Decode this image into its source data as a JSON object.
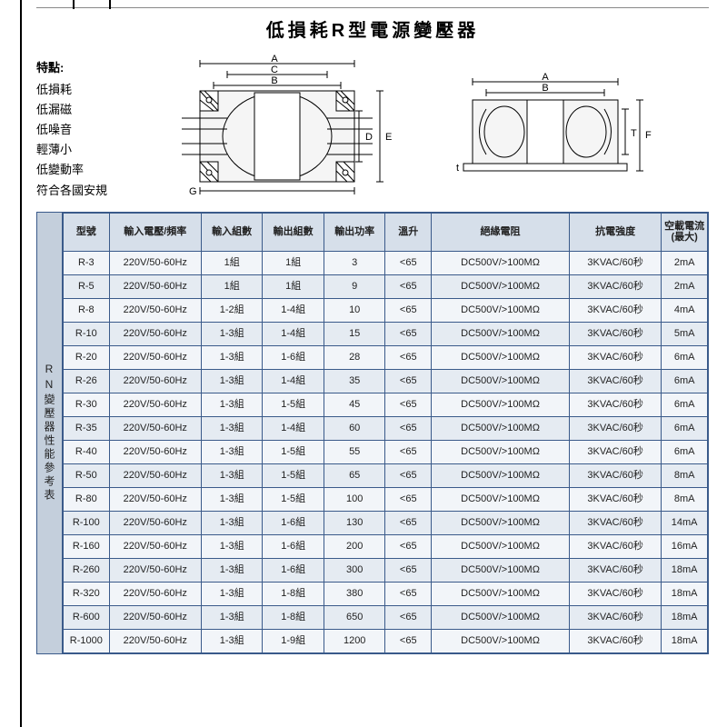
{
  "title": "低損耗R型電源變壓器",
  "features_title": "特點:",
  "features": [
    "低損耗",
    "低漏磁",
    "低噪音",
    "輕薄小",
    "低變動率",
    "符合各國安規"
  ],
  "diagram_labels": {
    "A": "A",
    "B": "B",
    "C": "C",
    "D": "D",
    "E": "E",
    "G": "G",
    "t": "t",
    "T": "T",
    "F": "F"
  },
  "side_label": "RN變壓器性能參考表",
  "table": {
    "columns": [
      "型號",
      "輸入電壓/頻率",
      "輸入組數",
      "輸出組數",
      "輸出功率",
      "溫升",
      "絕緣電阻",
      "抗電強度",
      "空載電流(最大)"
    ],
    "rows": [
      [
        "R-3",
        "220V/50-60Hz",
        "1組",
        "1組",
        "3",
        "<65",
        "DC500V/>100MΩ",
        "3KVAC/60秒",
        "2mA"
      ],
      [
        "R-5",
        "220V/50-60Hz",
        "1組",
        "1組",
        "9",
        "<65",
        "DC500V/>100MΩ",
        "3KVAC/60秒",
        "2mA"
      ],
      [
        "R-8",
        "220V/50-60Hz",
        "1-2組",
        "1-4組",
        "10",
        "<65",
        "DC500V/>100MΩ",
        "3KVAC/60秒",
        "4mA"
      ],
      [
        "R-10",
        "220V/50-60Hz",
        "1-3組",
        "1-4組",
        "15",
        "<65",
        "DC500V/>100MΩ",
        "3KVAC/60秒",
        "5mA"
      ],
      [
        "R-20",
        "220V/50-60Hz",
        "1-3組",
        "1-6組",
        "28",
        "<65",
        "DC500V/>100MΩ",
        "3KVAC/60秒",
        "6mA"
      ],
      [
        "R-26",
        "220V/50-60Hz",
        "1-3組",
        "1-4組",
        "35",
        "<65",
        "DC500V/>100MΩ",
        "3KVAC/60秒",
        "6mA"
      ],
      [
        "R-30",
        "220V/50-60Hz",
        "1-3組",
        "1-5組",
        "45",
        "<65",
        "DC500V/>100MΩ",
        "3KVAC/60秒",
        "6mA"
      ],
      [
        "R-35",
        "220V/50-60Hz",
        "1-3組",
        "1-4組",
        "60",
        "<65",
        "DC500V/>100MΩ",
        "3KVAC/60秒",
        "6mA"
      ],
      [
        "R-40",
        "220V/50-60Hz",
        "1-3組",
        "1-5組",
        "55",
        "<65",
        "DC500V/>100MΩ",
        "3KVAC/60秒",
        "6mA"
      ],
      [
        "R-50",
        "220V/50-60Hz",
        "1-3組",
        "1-5組",
        "65",
        "<65",
        "DC500V/>100MΩ",
        "3KVAC/60秒",
        "8mA"
      ],
      [
        "R-80",
        "220V/50-60Hz",
        "1-3組",
        "1-5組",
        "100",
        "<65",
        "DC500V/>100MΩ",
        "3KVAC/60秒",
        "8mA"
      ],
      [
        "R-100",
        "220V/50-60Hz",
        "1-3組",
        "1-6組",
        "130",
        "<65",
        "DC500V/>100MΩ",
        "3KVAC/60秒",
        "14mA"
      ],
      [
        "R-160",
        "220V/50-60Hz",
        "1-3組",
        "1-6組",
        "200",
        "<65",
        "DC500V/>100MΩ",
        "3KVAC/60秒",
        "16mA"
      ],
      [
        "R-260",
        "220V/50-60Hz",
        "1-3組",
        "1-6組",
        "300",
        "<65",
        "DC500V/>100MΩ",
        "3KVAC/60秒",
        "18mA"
      ],
      [
        "R-320",
        "220V/50-60Hz",
        "1-3組",
        "1-8組",
        "380",
        "<65",
        "DC500V/>100MΩ",
        "3KVAC/60秒",
        "18mA"
      ],
      [
        "R-600",
        "220V/50-60Hz",
        "1-3組",
        "1-8組",
        "650",
        "<65",
        "DC500V/>100MΩ",
        "3KVAC/60秒",
        "18mA"
      ],
      [
        "R-1000",
        "220V/50-60Hz",
        "1-3組",
        "1-9組",
        "1200",
        "<65",
        "DC500V/>100MΩ",
        "3KVAC/60秒",
        "18mA"
      ]
    ],
    "col_widths_pct": [
      6,
      12,
      8,
      8,
      8,
      6,
      18,
      12,
      6
    ],
    "header_bg": "#d6dfea",
    "row_bg_odd": "#f2f5f9",
    "row_bg_even": "#e5ebf2",
    "border_color": "#3a5a8a",
    "side_bg": "#c4cfdc",
    "font_size_pt": 11
  }
}
